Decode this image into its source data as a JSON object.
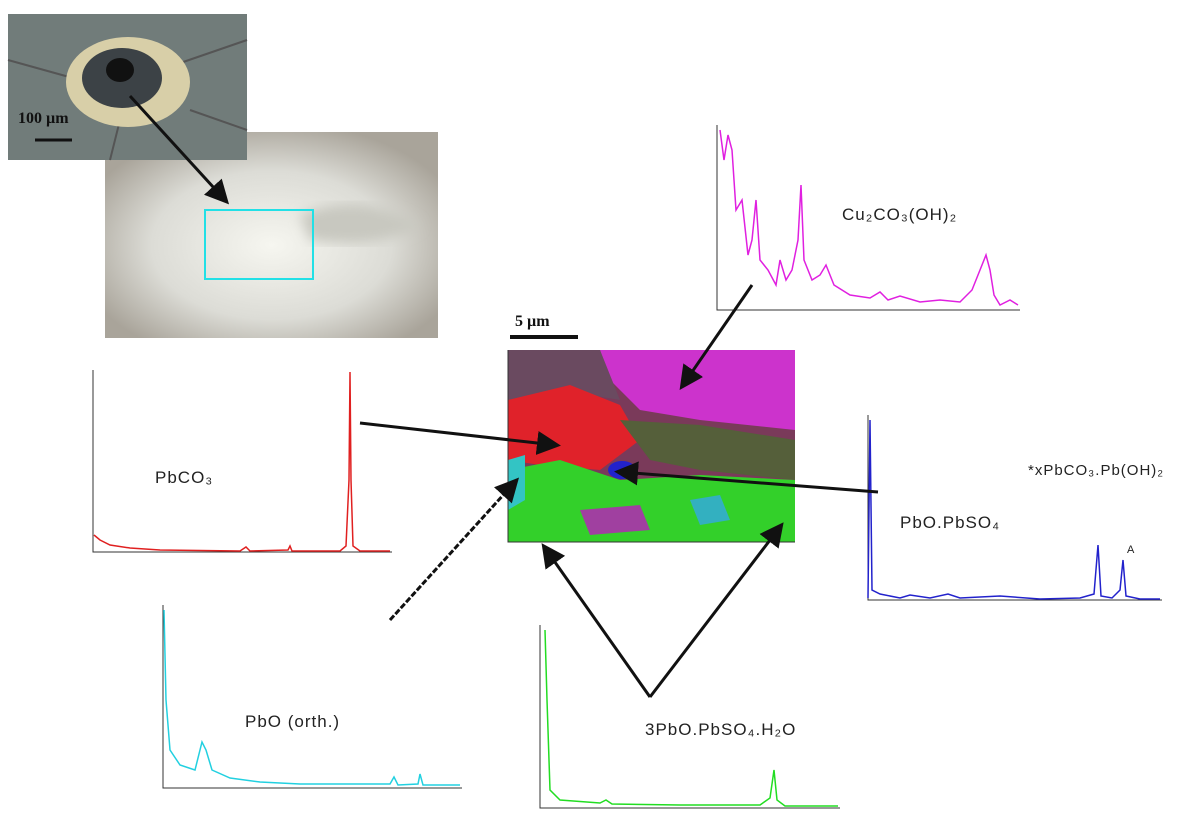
{
  "photo": {
    "scale_bar": "100 µm"
  },
  "map": {
    "scale_bar": "5 µm"
  },
  "spectra": [
    {
      "label": "Cu₂CO₃(OH)₂"
    },
    {
      "label": "PbCO₃"
    },
    {
      "label": "PbO (orth.)"
    },
    {
      "label": "3PbO.PbSO₄.H₂O"
    },
    {
      "label": "PbO.PbSO₄"
    },
    {
      "label": "*xPbCO₃.Pb(OH)₂"
    }
  ],
  "annotation": "A"
}
